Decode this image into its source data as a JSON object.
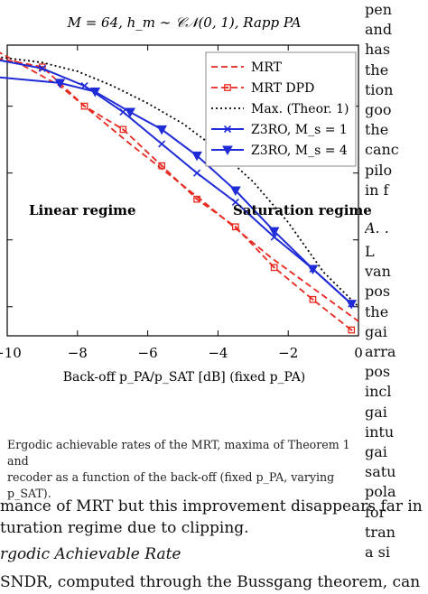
{
  "figure": {
    "title": "M = 64, h_m ∼ 𝒞𝒩(0, 1), Rapp PA",
    "xlabel": "Back-off p_PA/p_SAT [dB] (fixed p_PA)",
    "region_labels": {
      "left": "Linear regime",
      "right": "Saturation regime"
    }
  },
  "chart_data": {
    "type": "line",
    "title": "M = 64, h_m ∼ 𝒞𝒩(0, 1), Rapp PA",
    "xlabel": "Back-off p_PA/p_SAT [dB] (fixed p_PA)",
    "ylabel": "",
    "xlim": [
      -10,
      0
    ],
    "ylim": [
      0,
      1
    ],
    "xticks": [
      -10,
      -8,
      -6,
      -4,
      -2,
      0
    ],
    "xtick_labels": [
      "−10",
      "−8",
      "−6",
      "−4",
      "−2",
      "0"
    ],
    "ytick_values": [
      0.1,
      0.33,
      0.56,
      0.79,
      1.0
    ],
    "grid": false,
    "legend_position": "top-right",
    "series": [
      {
        "name": "MRT",
        "style": "dashed",
        "color": "#e8281e",
        "marker": "none",
        "x": [
          -10.3,
          -8.5,
          -6.5,
          -4.5,
          -2.5,
          0
        ],
        "y": [
          0.98,
          0.86,
          0.66,
          0.47,
          0.27,
          0.05
        ]
      },
      {
        "name": "MRT DPD",
        "style": "dashed",
        "color": "#e8281e",
        "marker": "square",
        "x": [
          -10.3,
          -9,
          -7.8,
          -6.7,
          -5.6,
          -4.6,
          -3.5,
          -2.4,
          -1.3,
          -0.2
        ],
        "y": [
          0.955,
          0.925,
          0.79,
          0.71,
          0.585,
          0.47,
          0.375,
          0.235,
          0.125,
          0.02
        ]
      },
      {
        "name": "Max. (Theor. 1)",
        "style": "dotted",
        "color": "#000000",
        "marker": "none",
        "x": [
          -10.3,
          -9,
          -8,
          -7,
          -6,
          -5,
          -4,
          -3,
          -2,
          -1,
          0
        ],
        "y": [
          0.96,
          0.94,
          0.91,
          0.86,
          0.8,
          0.73,
          0.64,
          0.53,
          0.39,
          0.22,
          0.1
        ]
      },
      {
        "name": "Z3RO, M_s = 1",
        "style": "solid",
        "color": "#1f2bd6",
        "marker": "x",
        "x": [
          -10.3,
          -9,
          -7.8,
          -6.7,
          -5.6,
          -4.6,
          -3.5,
          -2.4,
          -1.3,
          -0.2
        ],
        "y": [
          0.95,
          0.92,
          0.86,
          0.77,
          0.66,
          0.56,
          0.46,
          0.34,
          0.23,
          0.11
        ]
      },
      {
        "name": "Z3RO, M_s = 4",
        "style": "solid",
        "color": "#1f2bd6",
        "marker": "triangle-down",
        "x": [
          -10.3,
          -8.5,
          -7.5,
          -6.5,
          -5.6,
          -4.6,
          -3.5,
          -2.4,
          -1.3,
          -0.2
        ],
        "y": [
          0.89,
          0.87,
          0.84,
          0.77,
          0.71,
          0.62,
          0.5,
          0.36,
          0.23,
          0.11
        ]
      }
    ]
  },
  "caption": {
    "line1": "Ergodic achievable rates of the MRT, maxima of Theorem 1 and",
    "line2": "recoder as a function of the back-off (fixed p_PA, varying p_SAT)."
  },
  "body": {
    "line1": "mance of MRT but this improvement disappears far in",
    "line2": "turation regime due to clipping.",
    "section_heading": "rgodic Achievable Rate",
    "line3": "SNDR, computed through the Bussgang theorem, can"
  },
  "right_column": {
    "lines": [
      "pen",
      "and",
      "has",
      "the",
      "tion",
      "goo",
      "the",
      "canc",
      "pilo",
      "in f"
    ],
    "subsection": "A. .",
    "lines2": [
      "L",
      "van",
      "pos",
      "the",
      "gai",
      "arra",
      "pos",
      "incl",
      "gai",
      "intu",
      "gai",
      "satu",
      "pola",
      "for",
      "tran",
      "a si"
    ]
  }
}
